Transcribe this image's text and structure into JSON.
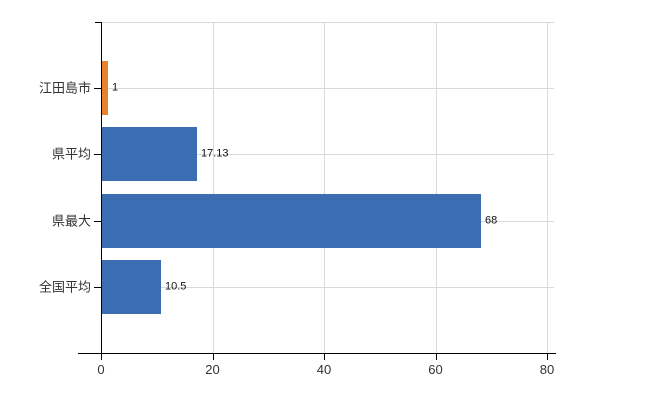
{
  "chart_data": {
    "type": "bar",
    "orientation": "horizontal",
    "title": "",
    "xlabel": "",
    "ylabel": "",
    "categories": [
      "江田島市",
      "県平均",
      "県最大",
      "全国平均"
    ],
    "values": [
      1,
      17.13,
      68,
      10.5
    ],
    "value_labels": [
      "1",
      "17.13",
      "68",
      "10.5"
    ],
    "bar_colors": [
      "#e8832d",
      "#3b6db3",
      "#3b6db3",
      "#3b6db3"
    ],
    "x_ticks": [
      0,
      20,
      40,
      60,
      80
    ],
    "x_tick_labels": [
      "0",
      "20",
      "40",
      "60",
      "80"
    ],
    "xlim": [
      0,
      81.3
    ],
    "grid": true,
    "legend": "none",
    "colors": {
      "highlight_bar": "#e8832d",
      "default_bar": "#3b6db3",
      "gridline": "#d9d9d9",
      "axis": "#000000",
      "text": "#333333",
      "value_text": "#111111",
      "background": "#ffffff"
    }
  }
}
